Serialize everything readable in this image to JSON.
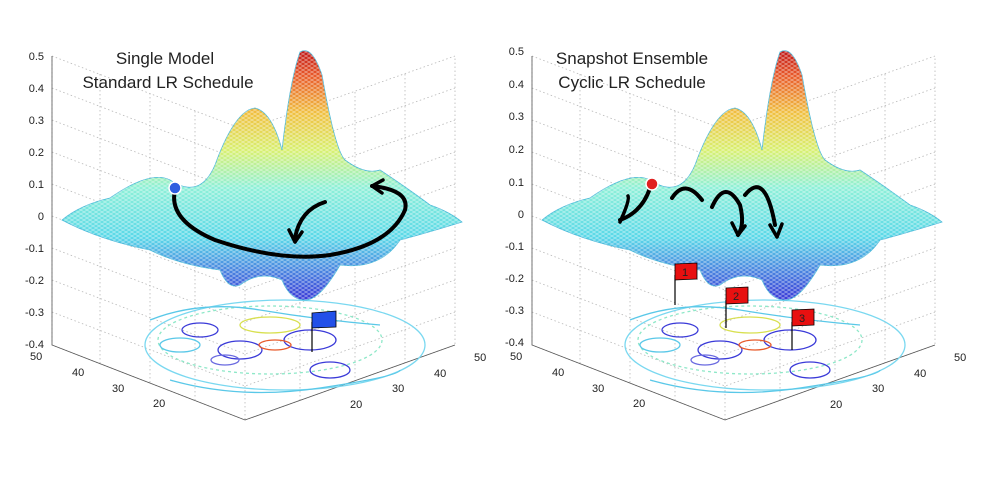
{
  "chart_data": [
    {
      "type": "surface3d",
      "title": [
        "Single Model",
        "Standard LR Schedule"
      ],
      "zlim": [
        -0.4,
        0.5
      ],
      "zticks": [
        "0.5",
        "0.4",
        "0.3",
        "0.2",
        "0.1",
        "0",
        "-0.1",
        "-0.2",
        "-0.3",
        "-0.4"
      ],
      "xticks": [
        "50",
        "40",
        "30",
        "20"
      ],
      "yticks": [
        "20",
        "30",
        "40",
        "50"
      ],
      "start_marker_color": "#2d5fe0",
      "trajectory": "single descent path into one local minimum",
      "flags": [
        {
          "label": "",
          "color": "#2250e8"
        }
      ]
    },
    {
      "type": "surface3d",
      "title": [
        "Snapshot Ensemble",
        "Cyclic LR Schedule"
      ],
      "zlim": [
        -0.4,
        0.5
      ],
      "zticks": [
        "0.5",
        "0.4",
        "0.3",
        "0.2",
        "0.1",
        "0",
        "-0.1",
        "-0.2",
        "-0.3",
        "-0.4"
      ],
      "xticks": [
        "50",
        "40",
        "30",
        "20"
      ],
      "yticks": [
        "20",
        "30",
        "40",
        "50"
      ],
      "start_marker_color": "#e02020",
      "trajectory": "three hops visiting three local minima",
      "flags": [
        {
          "label": "1",
          "color": "#e81010"
        },
        {
          "label": "2",
          "color": "#e81010"
        },
        {
          "label": "3",
          "color": "#e81010"
        }
      ]
    }
  ]
}
